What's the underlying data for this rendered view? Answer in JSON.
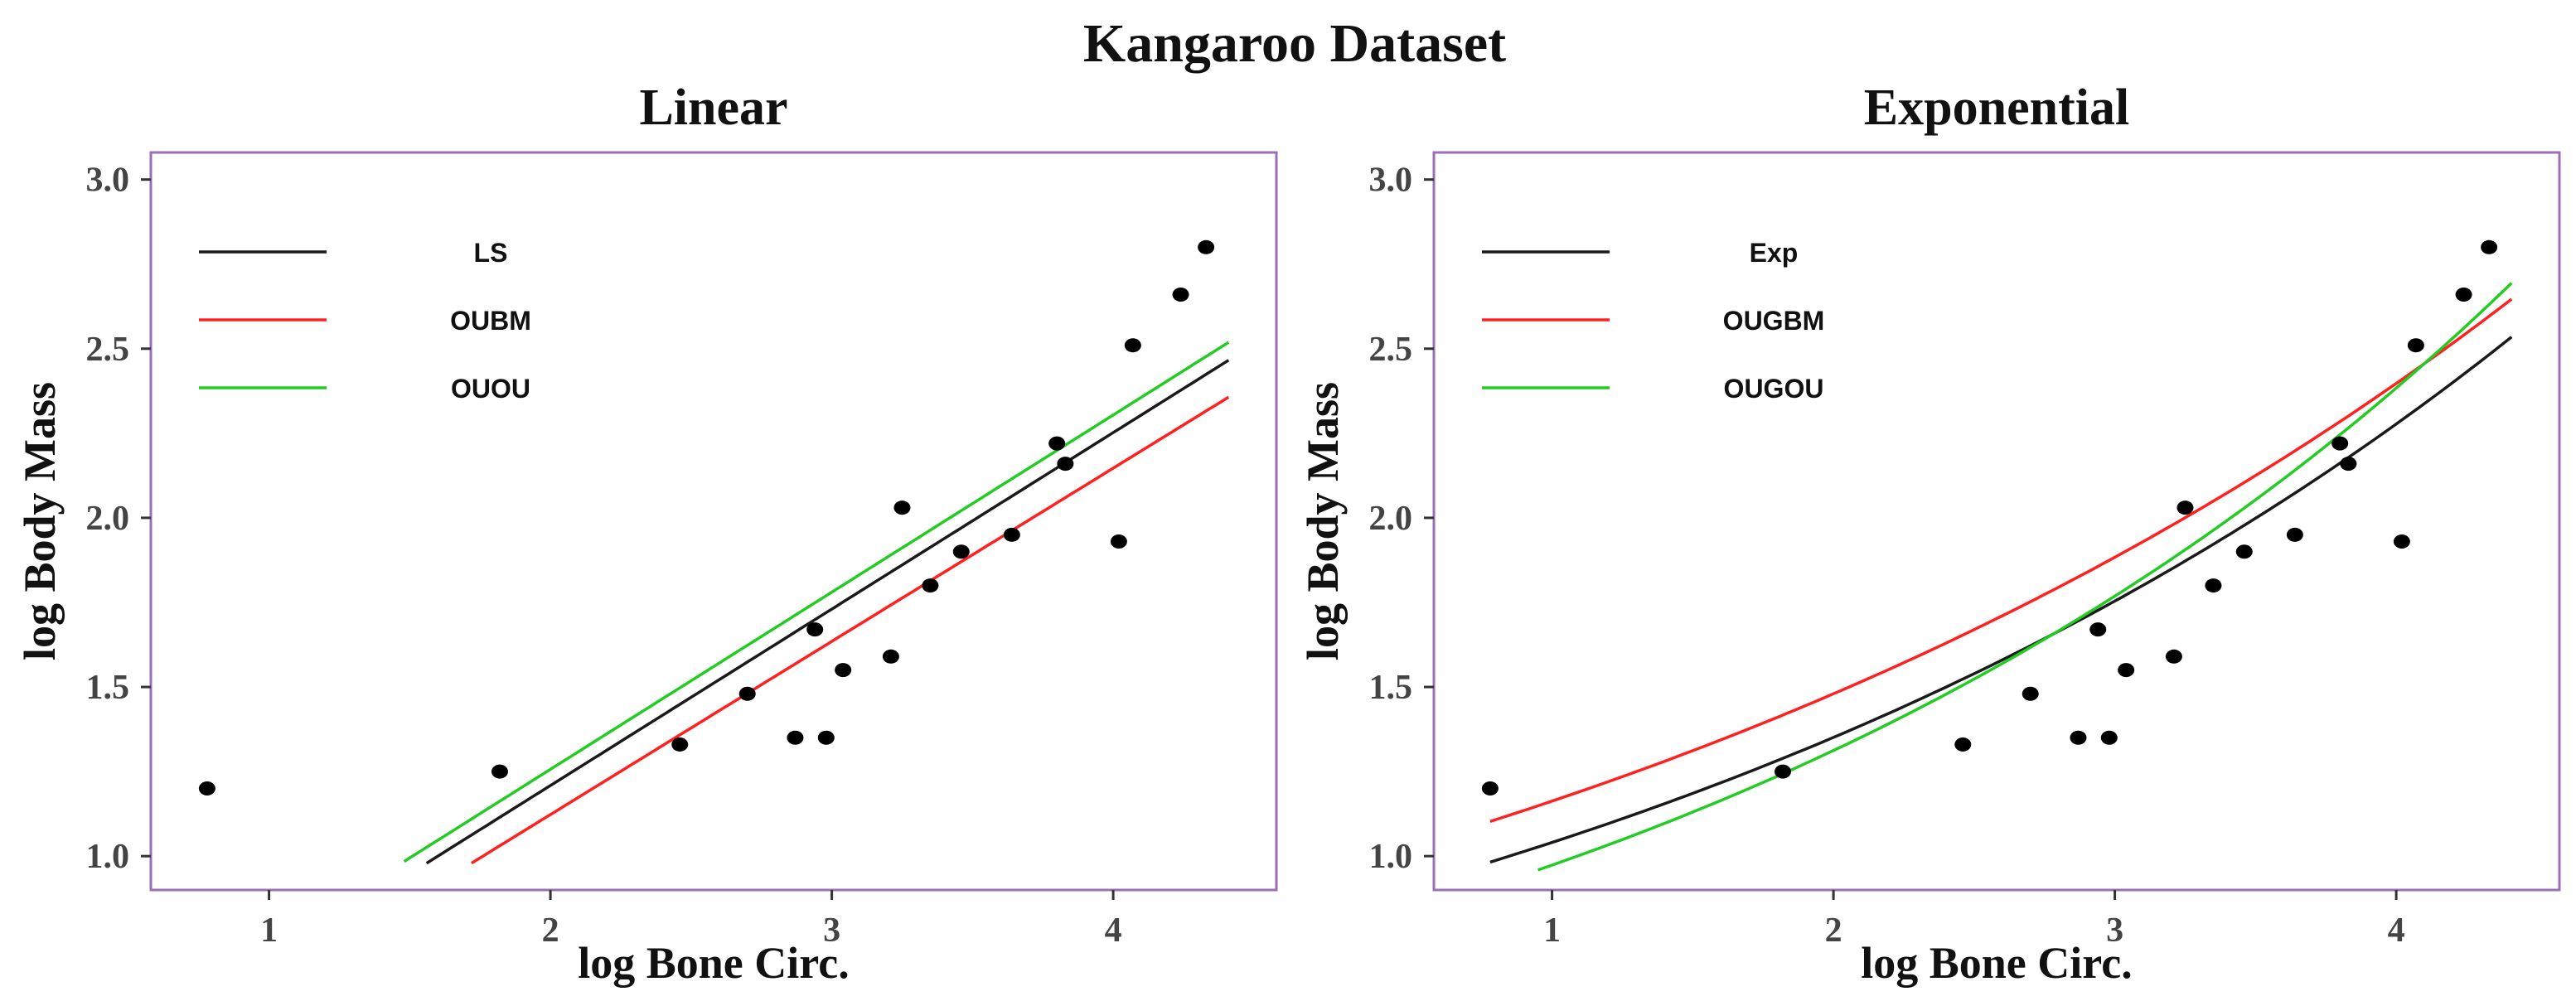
{
  "figure_title": "Kangaroo Dataset",
  "colors": {
    "frame": "#9b6fb6",
    "black": "#1a1a1a",
    "red": "#ff2020",
    "green": "#22cc22",
    "point": "#000000"
  },
  "chart_data": [
    {
      "type": "scatter",
      "title": "Linear",
      "xlabel": "log Bone Circ.",
      "ylabel": "log Body Mass",
      "xlim": [
        0.58,
        4.58
      ],
      "ylim": [
        0.9,
        3.08
      ],
      "xticks": [
        1,
        2,
        3,
        4
      ],
      "xtick_labels": [
        "1",
        "2",
        "3",
        "4"
      ],
      "yticks": [
        1.0,
        1.5,
        2.0,
        2.5,
        3.0
      ],
      "ytick_labels": [
        "1.0",
        "1.5",
        "2.0",
        "2.5",
        "3.0"
      ],
      "grid": false,
      "legend_position": "top-left",
      "points": {
        "x": [
          0.78,
          1.82,
          2.46,
          2.7,
          2.87,
          2.94,
          2.98,
          3.04,
          3.21,
          3.25,
          3.35,
          3.46,
          3.64,
          3.8,
          3.83,
          4.02,
          4.07,
          4.24,
          4.33
        ],
        "y": [
          1.2,
          1.25,
          1.33,
          1.48,
          1.35,
          1.67,
          1.35,
          1.55,
          1.59,
          2.03,
          1.8,
          1.9,
          1.95,
          2.22,
          2.16,
          1.93,
          2.51,
          2.66,
          2.8
        ]
      },
      "series": [
        {
          "name": "LS",
          "color": "#1a1a1a",
          "kind": "linear",
          "intercept": 0.1655,
          "slope": 0.5216,
          "x_range": [
            1.56,
            4.41
          ]
        },
        {
          "name": "OUBM",
          "color": "#ff2020",
          "kind": "linear",
          "intercept": 0.0988,
          "slope": 0.512,
          "x_range": [
            1.72,
            4.41
          ]
        },
        {
          "name": "OUOU",
          "color": "#22cc22",
          "kind": "linear",
          "intercept": 0.2092,
          "slope": 0.5237,
          "x_range": [
            1.48,
            4.41
          ]
        }
      ]
    },
    {
      "type": "scatter",
      "title": "Exponential",
      "xlabel": "log Bone Circ.",
      "ylabel": "log Body Mass",
      "xlim": [
        0.58,
        4.58
      ],
      "ylim": [
        0.9,
        3.08
      ],
      "xticks": [
        1,
        2,
        3,
        4
      ],
      "xtick_labels": [
        "1",
        "2",
        "3",
        "4"
      ],
      "yticks": [
        1.0,
        1.5,
        2.0,
        2.5,
        3.0
      ],
      "ytick_labels": [
        "1.0",
        "1.5",
        "2.0",
        "2.5",
        "3.0"
      ],
      "grid": false,
      "legend_position": "top-left",
      "points": {
        "x": [
          0.78,
          1.82,
          2.46,
          2.7,
          2.87,
          2.94,
          2.98,
          3.04,
          3.21,
          3.25,
          3.35,
          3.46,
          3.64,
          3.8,
          3.83,
          4.02,
          4.07,
          4.24,
          4.33
        ],
        "y": [
          1.2,
          1.25,
          1.33,
          1.48,
          1.35,
          1.67,
          1.35,
          1.55,
          1.59,
          2.03,
          1.8,
          1.9,
          1.95,
          2.22,
          2.16,
          1.93,
          2.51,
          2.66,
          2.8
        ]
      },
      "series": [
        {
          "name": "Exp",
          "color": "#1a1a1a",
          "kind": "exponential",
          "a": 0.8014,
          "b": 0.2611,
          "x_range": [
            0.78,
            4.41
          ]
        },
        {
          "name": "OUGBM",
          "color": "#ff2020",
          "kind": "exponential",
          "a": 0.9135,
          "b": 0.2412,
          "x_range": [
            0.78,
            4.41
          ]
        },
        {
          "name": "OUGOU",
          "color": "#22cc22",
          "kind": "exponential",
          "a": 0.7223,
          "b": 0.2985,
          "x_range": [
            0.95,
            4.41
          ]
        }
      ]
    }
  ]
}
